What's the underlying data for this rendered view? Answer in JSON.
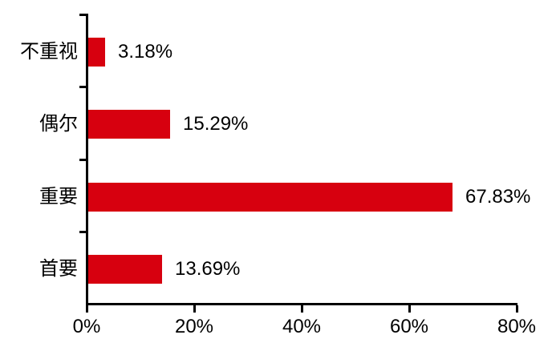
{
  "chart_data": {
    "type": "bar",
    "orientation": "horizontal",
    "title": "",
    "categories": [
      "不重视",
      "偶尔",
      "重要",
      "首要"
    ],
    "values": [
      3.18,
      15.29,
      67.83,
      13.69
    ],
    "value_labels": [
      "3.18%",
      "15.29%",
      "67.83%",
      "13.69%"
    ],
    "x_tick_labels": [
      "0%",
      "20%",
      "40%",
      "60%",
      "80%"
    ],
    "x_tick_values": [
      0,
      20,
      40,
      60,
      80
    ],
    "xlim": [
      0,
      80
    ],
    "grid": false,
    "legend": false,
    "colors": {
      "bar": "#D7000F",
      "axis": "#000000",
      "text": "#000000",
      "background": "#FFFFFF"
    }
  }
}
